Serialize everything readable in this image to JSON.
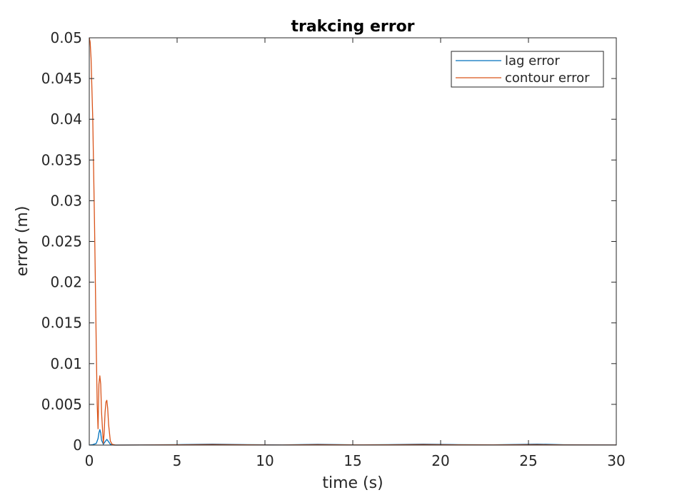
{
  "chart_data": {
    "type": "line",
    "title": "trakcing error",
    "xlabel": "time (s)",
    "ylabel": "error (m)",
    "xlim": [
      0,
      30
    ],
    "ylim": [
      0,
      0.05
    ],
    "x_ticks": [
      0,
      5,
      10,
      15,
      20,
      25,
      30
    ],
    "x_tick_labels": [
      "0",
      "5",
      "10",
      "15",
      "20",
      "25",
      "30"
    ],
    "y_ticks": [
      0,
      0.005,
      0.01,
      0.015,
      0.02,
      0.025,
      0.03,
      0.035,
      0.04,
      0.045,
      0.05
    ],
    "y_tick_labels": [
      "0",
      "0.005",
      "0.01",
      "0.015",
      "0.02",
      "0.025",
      "0.03",
      "0.035",
      "0.04",
      "0.045",
      "0.05"
    ],
    "grid": false,
    "legend_position": "top-right",
    "series": [
      {
        "name": "lag error",
        "color": "#0072BD",
        "points": [
          [
            0,
            0
          ],
          [
            0.2,
            5e-05
          ],
          [
            0.4,
            0.0002
          ],
          [
            0.5,
            0.0008
          ],
          [
            0.55,
            0.0015
          ],
          [
            0.6,
            0.0019
          ],
          [
            0.65,
            0.0015
          ],
          [
            0.7,
            0.0006
          ],
          [
            0.8,
            0.0001
          ],
          [
            0.9,
            0.0004
          ],
          [
            1.0,
            0.0007
          ],
          [
            1.1,
            0.0004
          ],
          [
            1.2,
            0.0001
          ],
          [
            1.4,
            0
          ],
          [
            3,
            2e-05
          ],
          [
            5,
            5e-05
          ],
          [
            7,
            0.00012
          ],
          [
            9,
            5e-05
          ],
          [
            11,
            2e-05
          ],
          [
            13,
            0.0001
          ],
          [
            15,
            3e-05
          ],
          [
            17,
            5e-05
          ],
          [
            19,
            0.00012
          ],
          [
            21,
            5e-05
          ],
          [
            23,
            3e-05
          ],
          [
            25.5,
            0.00012
          ],
          [
            27,
            4e-05
          ],
          [
            30,
            2e-05
          ]
        ]
      },
      {
        "name": "contour error",
        "color": "#D95319",
        "points": [
          [
            0,
            0.05
          ],
          [
            0.05,
            0.0495
          ],
          [
            0.1,
            0.0475
          ],
          [
            0.2,
            0.04
          ],
          [
            0.3,
            0.027
          ],
          [
            0.4,
            0.012
          ],
          [
            0.45,
            0.005
          ],
          [
            0.5,
            0.002
          ],
          [
            0.55,
            0.0075
          ],
          [
            0.6,
            0.0085
          ],
          [
            0.65,
            0.0075
          ],
          [
            0.7,
            0.004
          ],
          [
            0.8,
            0.0002
          ],
          [
            0.85,
            0.0015
          ],
          [
            0.9,
            0.004
          ],
          [
            0.95,
            0.0053
          ],
          [
            1.0,
            0.0055
          ],
          [
            1.05,
            0.0045
          ],
          [
            1.1,
            0.0025
          ],
          [
            1.2,
            0.0005
          ],
          [
            1.3,
            0.0001
          ],
          [
            1.5,
            0
          ],
          [
            3,
            1e-05
          ],
          [
            5,
            3e-05
          ],
          [
            7,
            6e-05
          ],
          [
            9,
            3e-05
          ],
          [
            11,
            1e-05
          ],
          [
            13,
            5e-05
          ],
          [
            15,
            2e-05
          ],
          [
            17,
            3e-05
          ],
          [
            19,
            6e-05
          ],
          [
            21,
            3e-05
          ],
          [
            23,
            2e-05
          ],
          [
            25.5,
            5e-05
          ],
          [
            27,
            2e-05
          ],
          [
            30,
            1e-05
          ]
        ]
      }
    ]
  }
}
